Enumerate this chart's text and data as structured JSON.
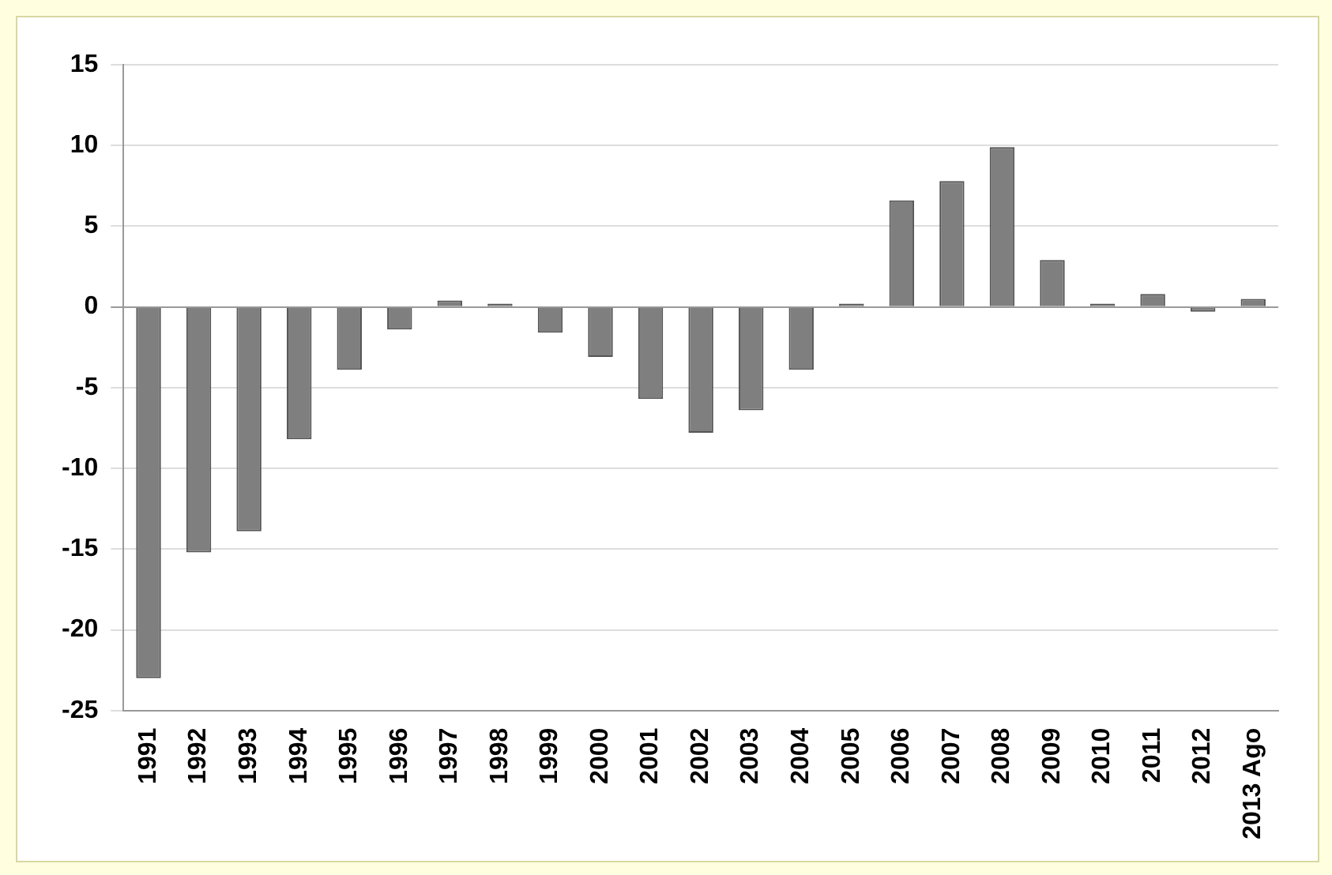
{
  "chart_data": {
    "type": "bar",
    "categories": [
      "1991",
      "1992",
      "1993",
      "1994",
      "1995",
      "1996",
      "1997",
      "1998",
      "1999",
      "2000",
      "2001",
      "2002",
      "2003",
      "2004",
      "2005",
      "2006",
      "2007",
      "2008",
      "2009",
      "2010",
      "2011",
      "2012",
      "2013 Ago"
    ],
    "values": [
      -23,
      -15.2,
      -13.9,
      -8.2,
      -3.9,
      -1.4,
      0.4,
      0.2,
      -1.6,
      -3.1,
      -5.7,
      -7.8,
      -6.4,
      -3.9,
      0.2,
      6.6,
      7.8,
      9.9,
      2.9,
      0.2,
      0.8,
      -0.3,
      0.5
    ],
    "color": "#7f7f7f",
    "ylim": [
      -25,
      15
    ],
    "yticks": [
      -25,
      -20,
      -15,
      -10,
      -5,
      0,
      5,
      10,
      15
    ],
    "grid": "y"
  }
}
